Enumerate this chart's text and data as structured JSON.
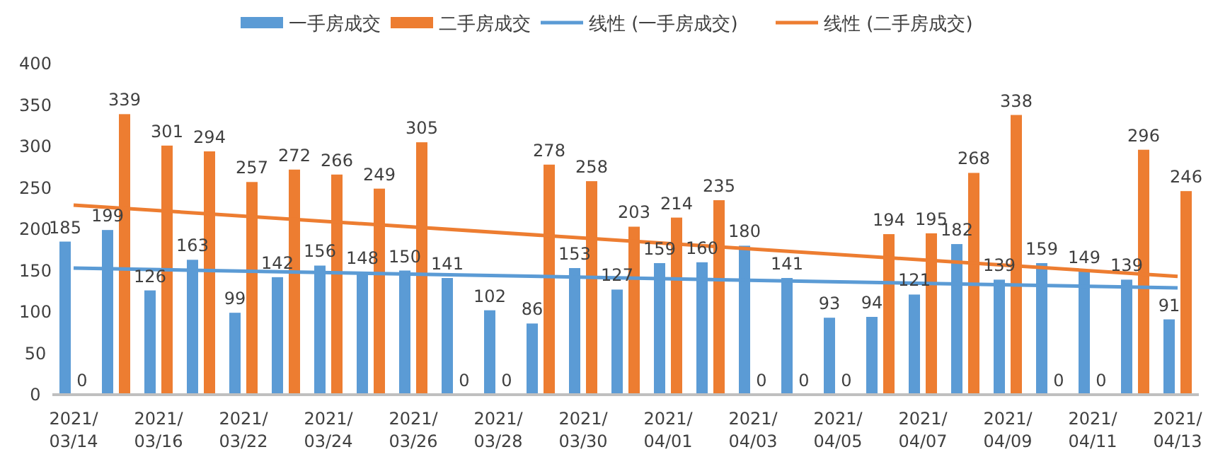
{
  "chart_data": {
    "type": "bar",
    "categories": [
      "2021/03/14",
      null,
      "2021/03/16",
      null,
      "2021/03/22",
      null,
      "2021/03/24",
      null,
      "2021/03/26",
      null,
      "2021/03/28",
      null,
      "2021/03/30",
      null,
      "2021/04/01",
      null,
      "2021/04/03",
      null,
      "2021/04/05",
      null,
      "2021/04/07",
      null,
      "2021/04/09",
      null,
      "2021/04/11",
      null,
      "2021/04/13"
    ],
    "series": [
      {
        "name": "一手房成交",
        "color": "#5b9bd5",
        "values": [
          185,
          199,
          126,
          163,
          99,
          142,
          156,
          148,
          150,
          141,
          102,
          86,
          153,
          127,
          159,
          160,
          180,
          141,
          93,
          94,
          121,
          182,
          139,
          159,
          149,
          139,
          91
        ],
        "value_labels": [
          "185",
          "199",
          "126",
          "163",
          "99",
          "142",
          "156",
          "148",
          "150",
          "141",
          "102",
          "86",
          "153",
          "127",
          "159",
          "160",
          "180",
          "141",
          "93",
          "94",
          "121",
          "182",
          "139",
          "159",
          "149",
          "139",
          "91"
        ]
      },
      {
        "name": "二手房成交",
        "color": "#ed7d31",
        "values": [
          0,
          339,
          301,
          294,
          257,
          272,
          266,
          249,
          305,
          0,
          0,
          278,
          258,
          203,
          214,
          235,
          0,
          0,
          0,
          194,
          195,
          268,
          338,
          0,
          0,
          296,
          246
        ],
        "value_labels": [
          "0",
          "339",
          "301",
          "294",
          "257",
          "272",
          "266",
          "249",
          "305",
          "0",
          "0",
          "278",
          "258",
          "203",
          "214",
          "235",
          "0",
          "0",
          "0",
          "194",
          "195",
          "268",
          "338",
          "0",
          "0",
          "296",
          "246"
        ]
      },
      {
        "name": "线性 (一手房成交)",
        "type": "line",
        "color": "#5b9bd5",
        "x": [
          "2021/03/14",
          "2021/04/13"
        ],
        "values": [
          153,
          129
        ]
      },
      {
        "name": "线性 (二手房成交)",
        "type": "line",
        "color": "#ed7d31",
        "x": [
          "2021/03/14",
          "2021/04/13"
        ],
        "values": [
          229,
          143
        ]
      }
    ],
    "ylim": [
      0,
      400
    ],
    "yticks": [
      0,
      50,
      100,
      150,
      200,
      250,
      300,
      350,
      400
    ],
    "legend": "top",
    "grid": false
  }
}
